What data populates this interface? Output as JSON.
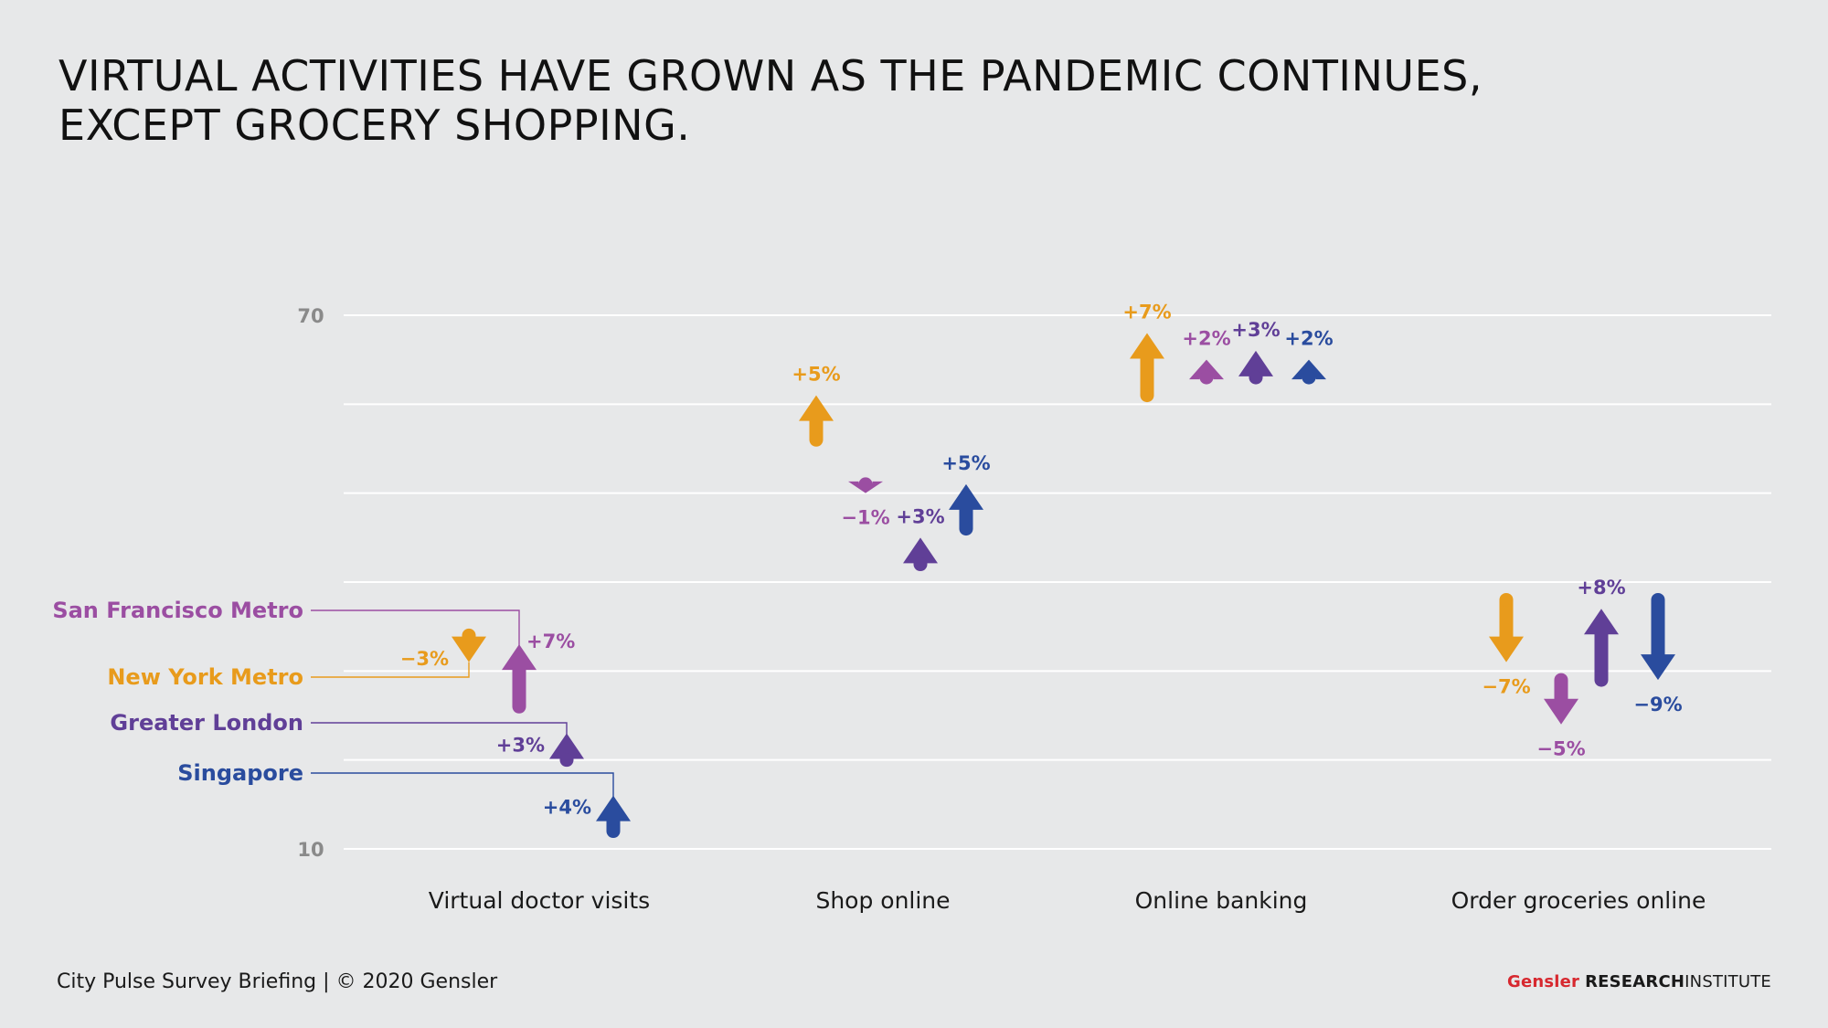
{
  "header": {
    "title_line1": "VIRTUAL ACTIVITIES HAVE GROWN AS THE PANDEMIC CONTINUES,",
    "title_line2": "EXCEPT GROCERY SHOPPING."
  },
  "footer": {
    "briefing": "City Pulse Survey Briefing  |  © 2020 Gensler",
    "brand": "Gensler",
    "research": "RESEARCH",
    "institute": "INSTITUTE"
  },
  "colors": {
    "san_francisco": "#9b4ea2",
    "new_york": "#e89b1c",
    "london": "#603f97",
    "singapore": "#2a4c9e",
    "grid": "#ffffff",
    "tick_label": "#8a8a8a"
  },
  "chart_data": {
    "type": "arrow",
    "categories": [
      "Virtual doctor visits",
      "Shop online",
      "Online banking",
      "Order groceries online"
    ],
    "yticks": [
      10,
      70
    ],
    "ylim": [
      10,
      70
    ],
    "grid": true,
    "legend_placement": "left",
    "series": [
      {
        "name": "San Francisco Metro",
        "color": "#9b4ea2",
        "points": [
          {
            "from": 26,
            "to": 33,
            "label": "+7%"
          },
          {
            "from": 51,
            "to": 50,
            "label": "−1%"
          },
          {
            "from": 63,
            "to": 65,
            "label": "+2%"
          },
          {
            "from": 29,
            "to": 24,
            "label": "−5%"
          }
        ]
      },
      {
        "name": "New York Metro",
        "color": "#e89b1c",
        "points": [
          {
            "from": 34,
            "to": 31,
            "label": "−3%"
          },
          {
            "from": 56,
            "to": 61,
            "label": "+5%"
          },
          {
            "from": 61,
            "to": 68,
            "label": "+7%"
          },
          {
            "from": 38,
            "to": 31,
            "label": "−7%"
          }
        ]
      },
      {
        "name": "Greater London",
        "color": "#603f97",
        "points": [
          {
            "from": 20,
            "to": 23,
            "label": "+3%"
          },
          {
            "from": 42,
            "to": 45,
            "label": "+3%"
          },
          {
            "from": 63,
            "to": 66,
            "label": "+3%"
          },
          {
            "from": 29,
            "to": 37,
            "label": "+8%"
          }
        ]
      },
      {
        "name": "Singapore",
        "color": "#2a4c9e",
        "points": [
          {
            "from": 12,
            "to": 16,
            "label": "+4%"
          },
          {
            "from": 46,
            "to": 51,
            "label": "+5%"
          },
          {
            "from": 63,
            "to": 65,
            "label": "+2%"
          },
          {
            "from": 38,
            "to": 29,
            "label": "−9%"
          }
        ]
      }
    ]
  }
}
